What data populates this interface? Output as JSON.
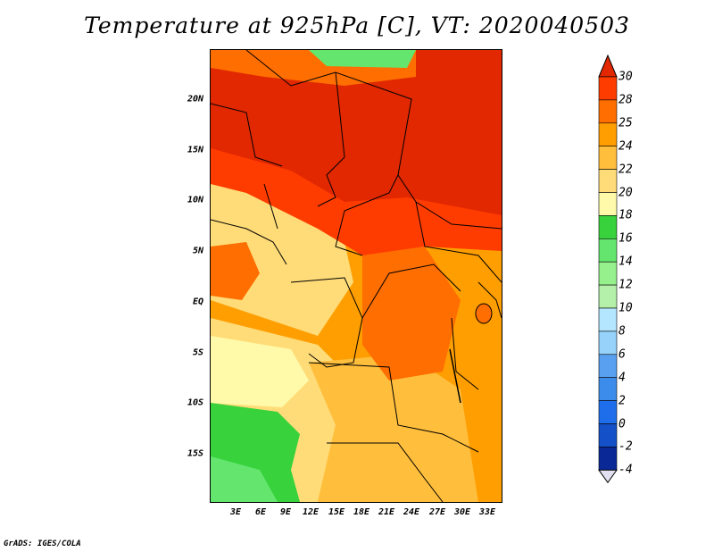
{
  "title": "Temperature at 925hPa [C], VT: 2020040503",
  "footer": "GrADS: IGES/COLA",
  "map": {
    "lat_labels": [
      "20N",
      "15N",
      "10N",
      "5N",
      "EQ",
      "5S",
      "10S",
      "15S"
    ],
    "lon_labels": [
      "3E",
      "6E",
      "9E",
      "12E",
      "15E",
      "18E",
      "21E",
      "24E",
      "27E",
      "30E",
      "33E"
    ]
  },
  "colorbar": {
    "levels": [
      "30",
      "28",
      "25",
      "24",
      "22",
      "20",
      "18",
      "16",
      "14",
      "12",
      "10",
      "8",
      "6",
      "4",
      "2",
      "0",
      "-2",
      "-4"
    ],
    "colors": [
      "#e12800",
      "#ff3c00",
      "#ff6e00",
      "#ff9e00",
      "#ffbe3c",
      "#ffdc78",
      "#fffaaa",
      "#37d23c",
      "#64e66e",
      "#96f08c",
      "#b4f0aa",
      "#b4e6ff",
      "#96d2fa",
      "#5aa0f0",
      "#3c8ceb",
      "#1e6eeb",
      "#1450c8",
      "#0a2896",
      "#e0e0f0"
    ]
  }
}
